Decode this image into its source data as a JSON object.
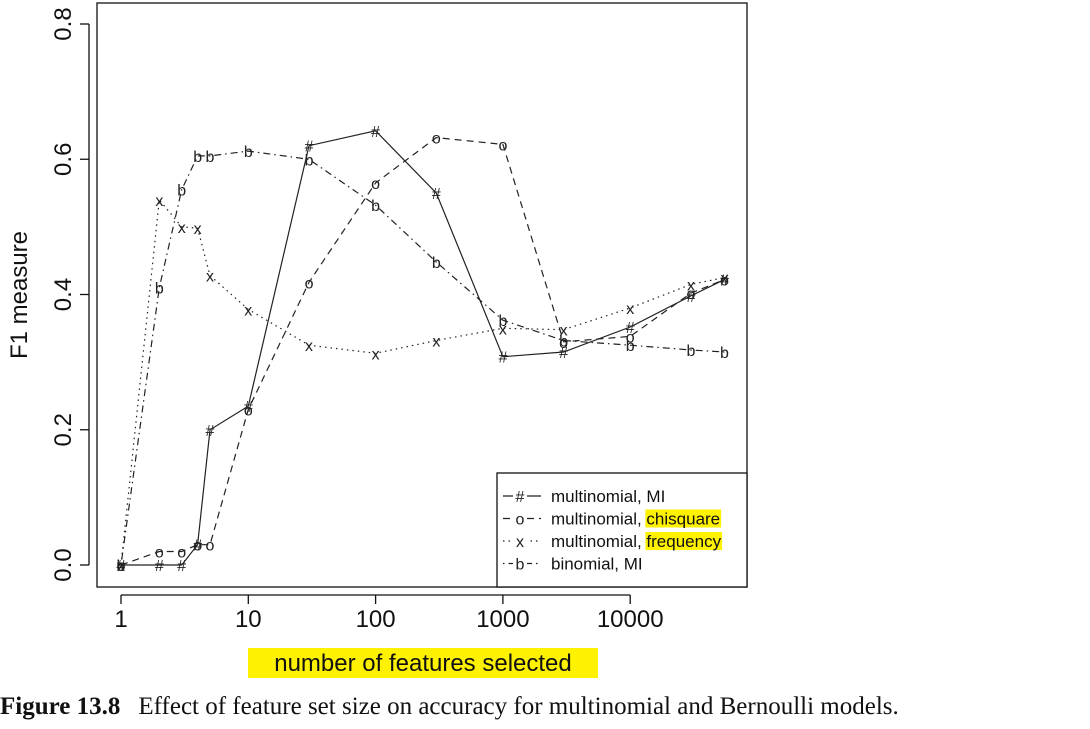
{
  "chart_data": {
    "type": "line",
    "xlabel": "number of features selected",
    "ylabel": "F1 measure",
    "x_scale": "log",
    "xlim": [
      1,
      60000
    ],
    "ylim": [
      0,
      0.8
    ],
    "x_ticks": [
      1,
      10,
      100,
      1000,
      10000
    ],
    "x_tick_labels": [
      "1",
      "10",
      "100",
      "1000",
      "10000"
    ],
    "y_ticks": [
      0,
      0.2,
      0.4,
      0.6,
      0.8
    ],
    "y_tick_labels": [
      "0.0",
      "0.2",
      "0.4",
      "0.6",
      "0.8"
    ],
    "grid": false,
    "legend_position": "bottom-right",
    "series": [
      {
        "name": "multinomial, MI",
        "legend_prefix": "multinomial, ",
        "legend_highlight": "MI",
        "highlighted": false,
        "marker": "#",
        "line_style": "solid",
        "x": [
          1,
          2,
          3,
          4,
          5,
          10,
          30,
          100,
          300,
          1000,
          3000,
          10000,
          30000,
          55000
        ],
        "y": [
          0.0,
          0.0,
          0.0,
          0.03,
          0.2,
          0.235,
          0.62,
          0.642,
          0.55,
          0.308,
          0.315,
          0.352,
          0.398,
          0.422
        ]
      },
      {
        "name": "multinomial, chisquare",
        "legend_prefix": "multinomial, ",
        "legend_highlight": "chisquare",
        "highlighted": true,
        "marker": "o",
        "line_style": "dashed",
        "x": [
          1,
          2,
          3,
          4,
          5,
          10,
          30,
          100,
          300,
          1000,
          3000,
          10000,
          30000,
          55000
        ],
        "y": [
          0.0,
          0.02,
          0.02,
          0.03,
          0.03,
          0.23,
          0.418,
          0.565,
          0.632,
          0.622,
          0.33,
          0.338,
          0.402,
          0.422
        ]
      },
      {
        "name": "multinomial, frequency",
        "legend_prefix": "multinomial, ",
        "legend_highlight": "frequency",
        "highlighted": true,
        "marker": "x",
        "line_style": "dotted",
        "x": [
          1,
          2,
          3,
          4,
          5,
          10,
          30,
          100,
          300,
          1000,
          3000,
          10000,
          30000,
          55000
        ],
        "y": [
          0.0,
          0.54,
          0.5,
          0.498,
          0.428,
          0.378,
          0.325,
          0.313,
          0.332,
          0.35,
          0.348,
          0.38,
          0.415,
          0.425
        ]
      },
      {
        "name": "binomial, MI",
        "legend_prefix": "binomial, ",
        "legend_highlight": "MI",
        "highlighted": false,
        "marker": "b",
        "line_style": "dotdash",
        "x": [
          1,
          2,
          3,
          4,
          5,
          10,
          30,
          100,
          300,
          1000,
          3000,
          10000,
          30000,
          55000
        ],
        "y": [
          0.0,
          0.41,
          0.555,
          0.605,
          0.605,
          0.612,
          0.6,
          0.532,
          0.448,
          0.362,
          0.332,
          0.325,
          0.318,
          0.315
        ]
      }
    ]
  },
  "colors": {
    "line": "#222222",
    "axis": "#111111",
    "highlight": "#fff200"
  },
  "caption": {
    "label": "Figure 13.8",
    "text": "Effect of feature set size on accuracy for multinomial and Bernoulli models."
  }
}
